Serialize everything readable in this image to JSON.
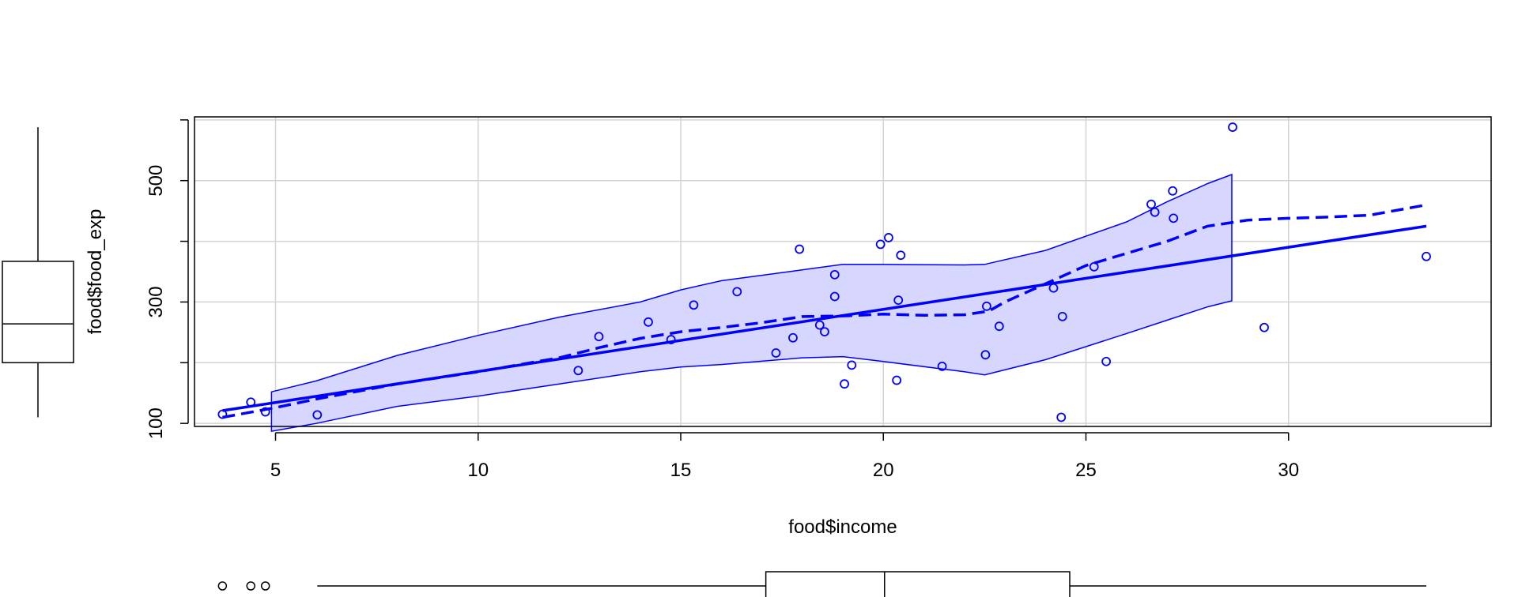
{
  "chart_data": {
    "type": "scatter",
    "xlabel": "food$income",
    "ylabel": "food$food_exp",
    "xlim": [
      3.0,
      35.0
    ],
    "ylim": [
      95,
      605
    ],
    "xticks": [
      5,
      10,
      15,
      20,
      25,
      30
    ],
    "xtick_labels": [
      "5",
      "10",
      "15",
      "20",
      "25",
      "30"
    ],
    "yticks": [
      100,
      200,
      300,
      400,
      500,
      600
    ],
    "ytick_labels": [
      "100",
      "",
      "300",
      "",
      "500",
      ""
    ],
    "grid": true,
    "colors": {
      "series": "#0000ff",
      "band_fill": "#d6d6ff",
      "grid": "#d3d3d3",
      "axis": "#000000"
    },
    "points": {
      "x": [
        3.69,
        4.39,
        4.75,
        6.03,
        12.47,
        12.98,
        14.2,
        14.76,
        15.32,
        16.39,
        17.35,
        17.77,
        17.93,
        18.43,
        18.55,
        18.8,
        18.8,
        19.04,
        19.22,
        19.93,
        20.13,
        20.33,
        20.37,
        20.43,
        21.45,
        22.52,
        22.55,
        22.86,
        24.2,
        24.39,
        24.42,
        25.2,
        25.5,
        26.61,
        26.7,
        27.14,
        27.16,
        28.62,
        29.4,
        33.4
      ],
      "y": [
        115,
        135,
        119,
        114,
        187,
        243,
        267,
        238,
        295,
        317,
        216,
        241,
        387,
        262,
        251,
        345,
        309,
        165,
        196,
        395,
        406,
        171,
        303,
        377,
        194,
        213,
        293,
        260,
        323,
        110,
        276,
        358,
        202,
        461,
        448,
        483,
        438,
        588,
        258,
        375
      ]
    },
    "regression_line": {
      "x": [
        3.69,
        33.4
      ],
      "y": [
        121,
        425
      ]
    },
    "smooth_line": {
      "x": [
        3.69,
        5,
        6,
        8,
        10,
        12,
        13,
        14,
        15,
        16,
        17,
        18,
        19,
        20,
        21,
        22,
        22.6,
        23,
        24,
        25,
        26,
        27,
        28,
        29,
        30,
        31,
        32,
        33.4
      ],
      "y": [
        110,
        126,
        140,
        165,
        185,
        208,
        225,
        240,
        251,
        258,
        266,
        276,
        277,
        280,
        278,
        279,
        285,
        300,
        330,
        360,
        380,
        400,
        425,
        435,
        438,
        440,
        443,
        460
      ]
    },
    "confidence_band": {
      "x": [
        4.9,
        6,
        8,
        10,
        12,
        14,
        15,
        16,
        18,
        19,
        20,
        22,
        22.5,
        24,
        26,
        27,
        28,
        28.6
      ],
      "upper": [
        152,
        170,
        212,
        245,
        275,
        300,
        320,
        335,
        353,
        362,
        362,
        361,
        362,
        385,
        432,
        465,
        495,
        510
      ],
      "lower": [
        87,
        100,
        128,
        145,
        165,
        185,
        193,
        197,
        208,
        210,
        202,
        185,
        180,
        205,
        248,
        270,
        292,
        302
      ]
    },
    "x_boxplot": {
      "min": 6.03,
      "q1": 17.1,
      "median": 20.03,
      "q3": 24.6,
      "max": 33.4,
      "outliers": [
        3.69,
        4.39,
        4.75
      ]
    },
    "y_boxplot": {
      "min": 110,
      "q1": 200,
      "median": 264,
      "q3": 367,
      "max": 588,
      "outliers": []
    }
  }
}
